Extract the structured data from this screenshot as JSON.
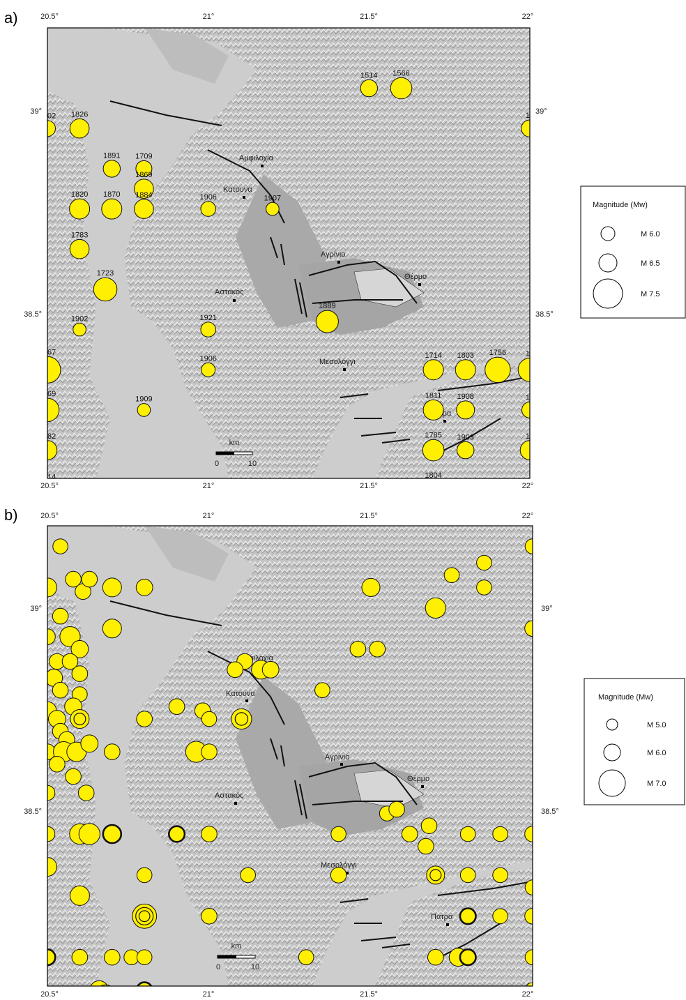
{
  "colors": {
    "land": "#b9b9b9",
    "sea": "#cfcfcf",
    "quake_fill": "#ffef00",
    "quake_stroke": "#111111",
    "fault": "#111111"
  },
  "panels": [
    {
      "label": "a)",
      "top_lon_ticks": [
        "20.5°",
        "21°",
        "21.5°",
        "22°"
      ],
      "bottom_lon_ticks": [
        "20.5°",
        "21°",
        "21.5°",
        "22°"
      ],
      "left_lat_ticks": [
        "39°",
        "38.5°"
      ],
      "right_lat_ticks": [
        "39°",
        "38.5°"
      ],
      "scale_bar": {
        "unit": "km",
        "ticks": [
          "0",
          "10"
        ]
      },
      "cities": [
        "Αμφιλοχία",
        "Κατουνα",
        "Αγρίνιο",
        "Θέρμο",
        "Αστακός",
        "Μεσολόγγι",
        "Πατρα"
      ],
      "legend": {
        "title": "Magnitude (Mw)",
        "items": [
          {
            "label": "M  6.0",
            "mag": 6.0
          },
          {
            "label": "M  6.5",
            "mag": 6.5
          },
          {
            "label": "M  7.5",
            "mag": 7.5
          }
        ]
      },
      "events": [
        {
          "lon": 21.5,
          "lat": 39.1,
          "mag": 6.3,
          "year": "1514"
        },
        {
          "lon": 21.6,
          "lat": 39.1,
          "mag": 6.7,
          "year": "1566"
        },
        {
          "lon": 20.5,
          "lat": 39.0,
          "mag": 6.2,
          "year": "1902"
        },
        {
          "lon": 20.6,
          "lat": 39.0,
          "mag": 6.5,
          "year": "1826"
        },
        {
          "lon": 22.0,
          "lat": 39.0,
          "mag": 6.3,
          "year": "19"
        },
        {
          "lon": 20.7,
          "lat": 38.9,
          "mag": 6.3,
          "year": "1891"
        },
        {
          "lon": 20.8,
          "lat": 38.9,
          "mag": 6.2,
          "year": "1709"
        },
        {
          "lon": 20.8,
          "lat": 38.85,
          "mag": 6.5,
          "year": "1869"
        },
        {
          "lon": 20.6,
          "lat": 38.8,
          "mag": 6.6,
          "year": "1820"
        },
        {
          "lon": 20.7,
          "lat": 38.8,
          "mag": 6.6,
          "year": "1870"
        },
        {
          "lon": 20.8,
          "lat": 38.8,
          "mag": 6.5,
          "year": "1884"
        },
        {
          "lon": 21.0,
          "lat": 38.8,
          "mag": 6.1,
          "year": "1906"
        },
        {
          "lon": 21.2,
          "lat": 38.8,
          "mag": 5.9,
          "year": "1907"
        },
        {
          "lon": 20.6,
          "lat": 38.7,
          "mag": 6.5,
          "year": "1783"
        },
        {
          "lon": 20.68,
          "lat": 38.6,
          "mag": 6.9,
          "year": "1723"
        },
        {
          "lon": 21.37,
          "lat": 38.52,
          "mag": 6.8,
          "year": "1889"
        },
        {
          "lon": 20.6,
          "lat": 38.5,
          "mag": 5.9,
          "year": "1902"
        },
        {
          "lon": 21.0,
          "lat": 38.5,
          "mag": 6.1,
          "year": "1921"
        },
        {
          "lon": 20.5,
          "lat": 38.4,
          "mag": 7.2,
          "year": "1867"
        },
        {
          "lon": 21.0,
          "lat": 38.4,
          "mag": 6.0,
          "year": "1906"
        },
        {
          "lon": 21.7,
          "lat": 38.4,
          "mag": 6.6,
          "year": "1714"
        },
        {
          "lon": 21.8,
          "lat": 38.4,
          "mag": 6.6,
          "year": "1803"
        },
        {
          "lon": 21.9,
          "lat": 38.4,
          "mag": 7.1,
          "year": "1756"
        },
        {
          "lon": 22.0,
          "lat": 38.4,
          "mag": 6.9,
          "year": "18"
        },
        {
          "lon": 20.5,
          "lat": 38.3,
          "mag": 6.9,
          "year": "1869"
        },
        {
          "lon": 20.8,
          "lat": 38.3,
          "mag": 5.9,
          "year": "1909"
        },
        {
          "lon": 21.7,
          "lat": 38.3,
          "mag": 6.6,
          "year": "1811"
        },
        {
          "lon": 21.8,
          "lat": 38.3,
          "mag": 6.4,
          "year": "1908"
        },
        {
          "lon": 22.0,
          "lat": 38.3,
          "mag": 6.2,
          "year": "19"
        },
        {
          "lon": 20.5,
          "lat": 38.2,
          "mag": 6.5,
          "year": "1882"
        },
        {
          "lon": 21.7,
          "lat": 38.2,
          "mag": 6.7,
          "year": "1785"
        },
        {
          "lon": 21.8,
          "lat": 38.2,
          "mag": 6.3,
          "year": "1903"
        },
        {
          "lon": 22.0,
          "lat": 38.2,
          "mag": 6.5,
          "year": "18"
        },
        {
          "lon": 20.5,
          "lat": 38.1,
          "mag": 6.4,
          "year": "1714"
        },
        {
          "lon": 21.7,
          "lat": 38.1,
          "mag": 6.7,
          "year": "1804"
        }
      ]
    },
    {
      "label": "b)",
      "top_lon_ticks": [
        "20.5°",
        "21°",
        "21.5°",
        "22°"
      ],
      "bottom_lon_ticks": [
        "20.5°",
        "21°",
        "21.5°",
        "22°"
      ],
      "left_lat_ticks": [
        "39°",
        "38.5°"
      ],
      "right_lat_ticks": [
        "39°",
        "38.5°"
      ],
      "scale_bar": {
        "unit": "km",
        "ticks": [
          "0",
          "10"
        ]
      },
      "cities": [
        "Αμφιλοχία",
        "Κατουνα",
        "Αγρίνιο",
        "Θέρμο",
        "Αστακός",
        "Μεσολόγγι",
        "Πατρα"
      ],
      "legend": {
        "title": "Magnitude (Mw)",
        "items": [
          {
            "label": "M  5.0",
            "mag": 5.0
          },
          {
            "label": "M  6.0",
            "mag": 6.0
          },
          {
            "label": "M  7.0",
            "mag": 7.0
          }
        ]
      },
      "events": [
        {
          "lon": 20.54,
          "lat": 39.2,
          "mag": 5.5
        },
        {
          "lon": 20.5,
          "lat": 39.1,
          "mag": 6.0
        },
        {
          "lon": 20.58,
          "lat": 39.12,
          "mag": 5.6
        },
        {
          "lon": 20.61,
          "lat": 39.09,
          "mag": 5.6
        },
        {
          "lon": 20.63,
          "lat": 39.12,
          "mag": 5.6
        },
        {
          "lon": 20.7,
          "lat": 39.1,
          "mag": 6.0
        },
        {
          "lon": 20.8,
          "lat": 39.1,
          "mag": 5.7
        },
        {
          "lon": 21.5,
          "lat": 39.1,
          "mag": 5.9
        },
        {
          "lon": 21.75,
          "lat": 39.13,
          "mag": 5.5
        },
        {
          "lon": 21.85,
          "lat": 39.16,
          "mag": 5.5
        },
        {
          "lon": 21.85,
          "lat": 39.1,
          "mag": 5.5
        },
        {
          "lon": 21.7,
          "lat": 39.05,
          "mag": 6.2
        },
        {
          "lon": 22.0,
          "lat": 39.2,
          "mag": 5.5
        },
        {
          "lon": 20.54,
          "lat": 39.03,
          "mag": 5.6
        },
        {
          "lon": 20.57,
          "lat": 38.98,
          "mag": 6.2
        },
        {
          "lon": 20.5,
          "lat": 38.98,
          "mag": 5.6
        },
        {
          "lon": 20.6,
          "lat": 38.95,
          "mag": 5.8
        },
        {
          "lon": 20.7,
          "lat": 39.0,
          "mag": 6.0
        },
        {
          "lon": 20.53,
          "lat": 38.92,
          "mag": 5.6
        },
        {
          "lon": 20.57,
          "lat": 38.92,
          "mag": 5.6
        },
        {
          "lon": 20.52,
          "lat": 38.88,
          "mag": 5.8
        },
        {
          "lon": 20.6,
          "lat": 38.89,
          "mag": 5.6
        },
        {
          "lon": 20.54,
          "lat": 38.85,
          "mag": 5.6
        },
        {
          "lon": 20.6,
          "lat": 38.84,
          "mag": 5.5
        },
        {
          "lon": 22.0,
          "lat": 39.0,
          "mag": 5.6
        },
        {
          "lon": 21.46,
          "lat": 38.95,
          "mag": 5.6
        },
        {
          "lon": 21.52,
          "lat": 38.95,
          "mag": 5.6
        },
        {
          "lon": 21.11,
          "lat": 38.92,
          "mag": 5.6
        },
        {
          "lon": 21.16,
          "lat": 38.9,
          "mag": 6.0
        },
        {
          "lon": 21.19,
          "lat": 38.9,
          "mag": 5.7
        },
        {
          "lon": 21.35,
          "lat": 38.85,
          "mag": 5.5
        },
        {
          "lon": 21.08,
          "lat": 38.9,
          "mag": 5.6
        },
        {
          "lon": 20.5,
          "lat": 38.8,
          "mag": 5.9
        },
        {
          "lon": 20.53,
          "lat": 38.78,
          "mag": 5.8
        },
        {
          "lon": 20.58,
          "lat": 38.81,
          "mag": 5.8
        },
        {
          "lon": 20.6,
          "lat": 38.78,
          "mag": 6.0,
          "double": true
        },
        {
          "lon": 20.54,
          "lat": 38.75,
          "mag": 5.6
        },
        {
          "lon": 20.56,
          "lat": 38.73,
          "mag": 5.6
        },
        {
          "lon": 20.8,
          "lat": 38.78,
          "mag": 5.6
        },
        {
          "lon": 20.9,
          "lat": 38.81,
          "mag": 5.6
        },
        {
          "lon": 20.98,
          "lat": 38.8,
          "mag": 5.6
        },
        {
          "lon": 21.0,
          "lat": 38.78,
          "mag": 5.5
        },
        {
          "lon": 21.1,
          "lat": 38.78,
          "mag": 6.2,
          "double": true
        },
        {
          "lon": 20.5,
          "lat": 38.7,
          "mag": 5.6
        },
        {
          "lon": 20.55,
          "lat": 38.7,
          "mag": 6.2
        },
        {
          "lon": 20.59,
          "lat": 38.7,
          "mag": 6.1
        },
        {
          "lon": 20.63,
          "lat": 38.72,
          "mag": 5.8
        },
        {
          "lon": 20.53,
          "lat": 38.67,
          "mag": 5.6
        },
        {
          "lon": 20.58,
          "lat": 38.64,
          "mag": 5.6
        },
        {
          "lon": 20.7,
          "lat": 38.7,
          "mag": 5.6
        },
        {
          "lon": 20.96,
          "lat": 38.7,
          "mag": 6.3
        },
        {
          "lon": 21.0,
          "lat": 38.7,
          "mag": 5.6
        },
        {
          "lon": 20.5,
          "lat": 38.6,
          "mag": 5.5
        },
        {
          "lon": 20.62,
          "lat": 38.6,
          "mag": 5.6
        },
        {
          "lon": 20.5,
          "lat": 38.5,
          "mag": 5.5
        },
        {
          "lon": 20.6,
          "lat": 38.5,
          "mag": 6.2
        },
        {
          "lon": 20.63,
          "lat": 38.5,
          "mag": 6.3
        },
        {
          "lon": 20.7,
          "lat": 38.5,
          "mag": 5.9,
          "thick": true
        },
        {
          "lon": 20.9,
          "lat": 38.5,
          "mag": 5.6,
          "thick": true
        },
        {
          "lon": 21.0,
          "lat": 38.5,
          "mag": 5.6
        },
        {
          "lon": 21.4,
          "lat": 38.5,
          "mag": 5.5
        },
        {
          "lon": 21.55,
          "lat": 38.55,
          "mag": 5.5
        },
        {
          "lon": 21.58,
          "lat": 38.56,
          "mag": 5.6
        },
        {
          "lon": 21.62,
          "lat": 38.5,
          "mag": 5.6
        },
        {
          "lon": 21.68,
          "lat": 38.52,
          "mag": 5.6
        },
        {
          "lon": 21.8,
          "lat": 38.5,
          "mag": 5.5
        },
        {
          "lon": 21.9,
          "lat": 38.5,
          "mag": 5.5
        },
        {
          "lon": 22.0,
          "lat": 38.5,
          "mag": 5.6
        },
        {
          "lon": 21.67,
          "lat": 38.47,
          "mag": 5.6
        },
        {
          "lon": 20.5,
          "lat": 38.42,
          "mag": 6.0
        },
        {
          "lon": 20.8,
          "lat": 38.4,
          "mag": 5.5
        },
        {
          "lon": 21.12,
          "lat": 38.4,
          "mag": 5.5
        },
        {
          "lon": 21.4,
          "lat": 38.4,
          "mag": 5.6
        },
        {
          "lon": 21.7,
          "lat": 38.4,
          "mag": 5.9,
          "double": true
        },
        {
          "lon": 21.8,
          "lat": 38.4,
          "mag": 5.5
        },
        {
          "lon": 21.9,
          "lat": 38.4,
          "mag": 5.5
        },
        {
          "lon": 22.0,
          "lat": 38.37,
          "mag": 5.5
        },
        {
          "lon": 20.6,
          "lat": 38.35,
          "mag": 6.1
        },
        {
          "lon": 20.8,
          "lat": 38.3,
          "mag": 6.7,
          "triple": true
        },
        {
          "lon": 21.0,
          "lat": 38.3,
          "mag": 5.6
        },
        {
          "lon": 21.8,
          "lat": 38.3,
          "mag": 5.6,
          "thick": true
        },
        {
          "lon": 21.9,
          "lat": 38.3,
          "mag": 5.5
        },
        {
          "lon": 22.0,
          "lat": 38.3,
          "mag": 5.6
        },
        {
          "lon": 20.5,
          "lat": 38.2,
          "mag": 5.6,
          "thick": true
        },
        {
          "lon": 20.6,
          "lat": 38.2,
          "mag": 5.6
        },
        {
          "lon": 20.7,
          "lat": 38.2,
          "mag": 5.6
        },
        {
          "lon": 20.76,
          "lat": 38.2,
          "mag": 5.5
        },
        {
          "lon": 20.8,
          "lat": 38.2,
          "mag": 5.5
        },
        {
          "lon": 21.3,
          "lat": 38.2,
          "mag": 5.5
        },
        {
          "lon": 21.7,
          "lat": 38.2,
          "mag": 5.6
        },
        {
          "lon": 21.77,
          "lat": 38.2,
          "mag": 5.9
        },
        {
          "lon": 21.8,
          "lat": 38.2,
          "mag": 5.6,
          "thick": true
        },
        {
          "lon": 22.0,
          "lat": 38.2,
          "mag": 5.5
        },
        {
          "lon": 20.66,
          "lat": 38.12,
          "mag": 6.0
        },
        {
          "lon": 20.68,
          "lat": 38.11,
          "mag": 6.0
        },
        {
          "lon": 20.8,
          "lat": 38.12,
          "mag": 5.6,
          "thick": true
        },
        {
          "lon": 22.0,
          "lat": 38.12,
          "mag": 5.5
        }
      ]
    }
  ]
}
